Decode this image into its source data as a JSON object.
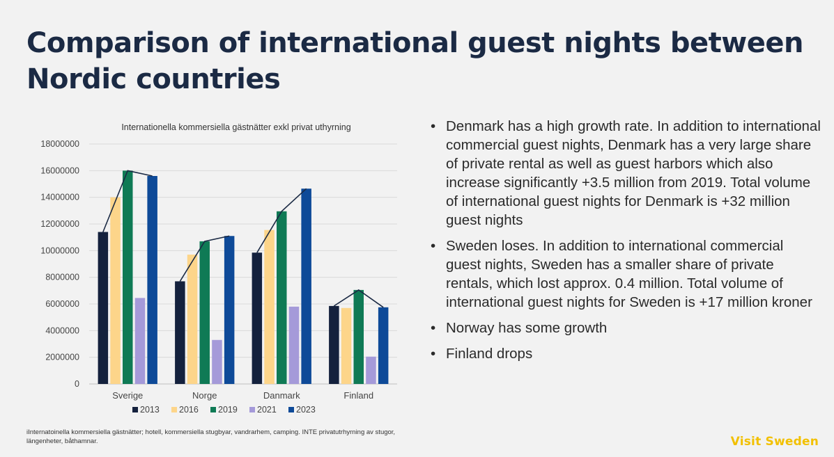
{
  "slide": {
    "title": "Comparison of international guest nights between Nordic countries",
    "bullets": [
      "Denmark has a high growth rate. In addition to international commercial guest nights, Denmark has a very large share of private rental as well as guest harbors which also increase significantly +3.5 million from 2019. Total volume of international guest nights for Denmark is +32 million guest nights",
      "Sweden loses. In addition to international commercial guest nights, Sweden has a smaller share of private rentals, which lost approx. 0.4 million.  Total volume of international guest nights for Sweden is +17 million kroner",
      "Norway has some growth",
      "Finland drops"
    ],
    "footnote": "iInternatoinella kommersiella gästnätter; hotell, kommersiella stugbyar, vandrarhem, camping. INTE privatutrhyrning av stugor, längenheter, båthamnar.",
    "brand": "Visit Sweden",
    "bullet_char": "•"
  },
  "chart_data": {
    "type": "bar",
    "title": "Internationella kommersiella gästnätter exkl privat uthyrning",
    "categories": [
      "Sverige",
      "Norge",
      "Danmark",
      "Finland"
    ],
    "series": [
      {
        "name": "2013",
        "color": "#14213d",
        "values": [
          11400000,
          7700000,
          9850000,
          5850000
        ]
      },
      {
        "name": "2016",
        "color": "#fdd58a",
        "values": [
          14000000,
          9700000,
          11550000,
          5700000
        ]
      },
      {
        "name": "2019",
        "color": "#0f7a55",
        "values": [
          16000000,
          10700000,
          12950000,
          7050000
        ]
      },
      {
        "name": "2021",
        "color": "#a59ad9",
        "values": [
          6450000,
          3300000,
          5800000,
          2050000
        ]
      },
      {
        "name": "2023",
        "color": "#0e4a98",
        "values": [
          15600000,
          11100000,
          14650000,
          5750000
        ]
      }
    ],
    "trend_series": [
      "2013",
      "2019",
      "2023"
    ],
    "yticks": [
      "0",
      "2000000",
      "4000000",
      "6000000",
      "8000000",
      "10000000",
      "12000000",
      "14000000",
      "16000000",
      "18000000"
    ],
    "ylim": [
      0,
      18000000
    ],
    "xlabel": "",
    "ylabel": "",
    "legend_position": "bottom",
    "grid": true
  }
}
